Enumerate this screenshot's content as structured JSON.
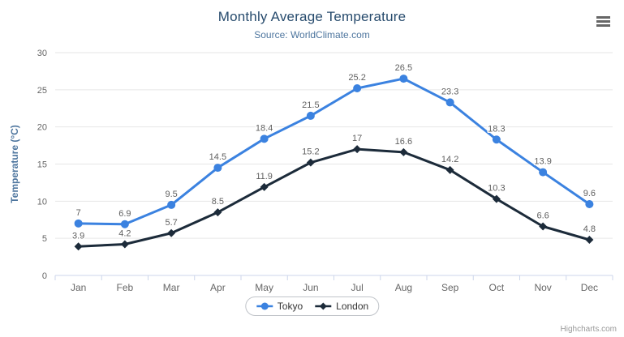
{
  "chart": {
    "credits": "Highcharts.com",
    "context_menu_icon": "hamburger-icon"
  },
  "chart_data": {
    "type": "line",
    "title": "Monthly Average Temperature",
    "subtitle": "Source: WorldClimate.com",
    "categories": [
      "Jan",
      "Feb",
      "Mar",
      "Apr",
      "May",
      "Jun",
      "Jul",
      "Aug",
      "Sep",
      "Oct",
      "Nov",
      "Dec"
    ],
    "xlabel": "",
    "ylabel": "Temperature (°C)",
    "ylim": [
      0,
      30
    ],
    "ytick_step": 5,
    "yticks": [
      0,
      5,
      10,
      15,
      20,
      25,
      30
    ],
    "grid": true,
    "legend_position": "bottom",
    "data_labels": true,
    "series": [
      {
        "name": "Tokyo",
        "marker": "circle",
        "color": "#3b82e0",
        "values": [
          7.0,
          6.9,
          9.5,
          14.5,
          18.4,
          21.5,
          25.2,
          26.5,
          23.3,
          18.3,
          13.9,
          9.6
        ]
      },
      {
        "name": "London",
        "marker": "diamond",
        "color": "#1c2b3a",
        "values": [
          3.9,
          4.2,
          5.7,
          8.5,
          11.9,
          15.2,
          17.0,
          16.6,
          14.2,
          10.3,
          6.6,
          4.8
        ]
      }
    ],
    "colors": {
      "title": "#274b6d",
      "subtitle": "#4d759e",
      "axis_title": "#4d759e",
      "axis_labels": "#666666",
      "grid": "#e6e6e6",
      "axis_line": "#ccd6eb",
      "data_labels": "#606060",
      "legend_text": "#333333",
      "legend_border": "#c0c4c9",
      "credits": "#999999"
    }
  }
}
